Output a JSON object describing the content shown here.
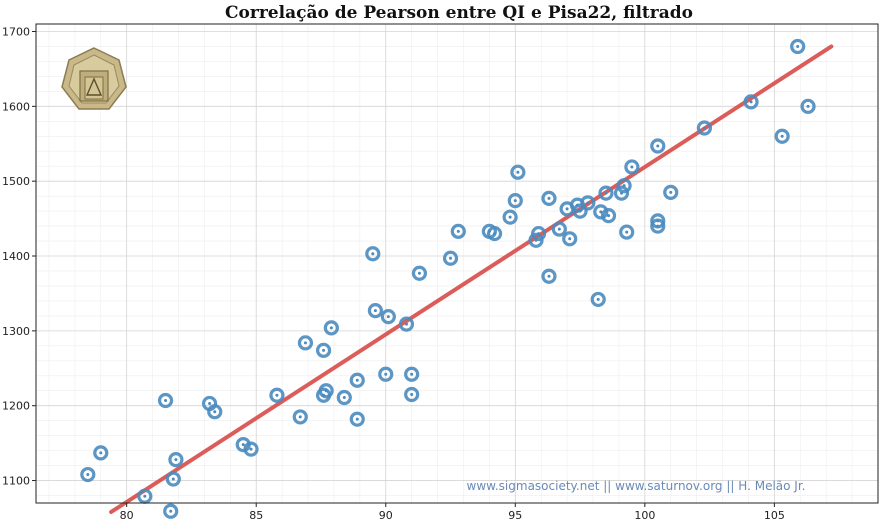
{
  "chart_data": {
    "type": "scatter",
    "title": "Correlação de Pearson entre QI e Pisa22, filtrado",
    "xlabel": "",
    "ylabel": "",
    "xlim": [
      76.5,
      109
    ],
    "ylim": [
      1070,
      1710
    ],
    "x_ticks": [
      "80",
      "85",
      "90",
      "95",
      "100",
      "105"
    ],
    "y_ticks": [
      "1100",
      "1200",
      "1300",
      "1400",
      "1500",
      "1600",
      "1700"
    ],
    "grid": true,
    "colors": {
      "points": "#4a8bbf",
      "trendline": "#d9534f"
    },
    "points": [
      {
        "x": 78.5,
        "y": 1108
      },
      {
        "x": 79.0,
        "y": 1137
      },
      {
        "x": 80.7,
        "y": 1079
      },
      {
        "x": 81.5,
        "y": 1207
      },
      {
        "x": 81.7,
        "y": 1059
      },
      {
        "x": 81.8,
        "y": 1102
      },
      {
        "x": 81.9,
        "y": 1128
      },
      {
        "x": 83.2,
        "y": 1203
      },
      {
        "x": 83.4,
        "y": 1192
      },
      {
        "x": 84.5,
        "y": 1148
      },
      {
        "x": 84.8,
        "y": 1142
      },
      {
        "x": 85.8,
        "y": 1214
      },
      {
        "x": 86.7,
        "y": 1185
      },
      {
        "x": 86.9,
        "y": 1284
      },
      {
        "x": 87.6,
        "y": 1274
      },
      {
        "x": 87.6,
        "y": 1214
      },
      {
        "x": 87.7,
        "y": 1220
      },
      {
        "x": 87.9,
        "y": 1304
      },
      {
        "x": 88.4,
        "y": 1211
      },
      {
        "x": 88.9,
        "y": 1182
      },
      {
        "x": 88.9,
        "y": 1234
      },
      {
        "x": 89.5,
        "y": 1403
      },
      {
        "x": 89.6,
        "y": 1327
      },
      {
        "x": 90.0,
        "y": 1242
      },
      {
        "x": 90.1,
        "y": 1319
      },
      {
        "x": 90.8,
        "y": 1309
      },
      {
        "x": 91.0,
        "y": 1242
      },
      {
        "x": 91.0,
        "y": 1215
      },
      {
        "x": 91.3,
        "y": 1377
      },
      {
        "x": 92.5,
        "y": 1397
      },
      {
        "x": 92.8,
        "y": 1433
      },
      {
        "x": 94.0,
        "y": 1433
      },
      {
        "x": 94.2,
        "y": 1430
      },
      {
        "x": 94.8,
        "y": 1452
      },
      {
        "x": 95.0,
        "y": 1474
      },
      {
        "x": 95.1,
        "y": 1512
      },
      {
        "x": 95.8,
        "y": 1421
      },
      {
        "x": 95.9,
        "y": 1430
      },
      {
        "x": 96.3,
        "y": 1373
      },
      {
        "x": 96.3,
        "y": 1477
      },
      {
        "x": 96.7,
        "y": 1436
      },
      {
        "x": 97.0,
        "y": 1463
      },
      {
        "x": 97.1,
        "y": 1423
      },
      {
        "x": 97.4,
        "y": 1468
      },
      {
        "x": 97.5,
        "y": 1460
      },
      {
        "x": 97.8,
        "y": 1471
      },
      {
        "x": 98.2,
        "y": 1342
      },
      {
        "x": 98.3,
        "y": 1459
      },
      {
        "x": 98.5,
        "y": 1484
      },
      {
        "x": 98.6,
        "y": 1454
      },
      {
        "x": 99.1,
        "y": 1484
      },
      {
        "x": 99.2,
        "y": 1494
      },
      {
        "x": 99.3,
        "y": 1432
      },
      {
        "x": 99.5,
        "y": 1519
      },
      {
        "x": 100.5,
        "y": 1547
      },
      {
        "x": 100.5,
        "y": 1447
      },
      {
        "x": 100.5,
        "y": 1440
      },
      {
        "x": 101.0,
        "y": 1485
      },
      {
        "x": 102.3,
        "y": 1571
      },
      {
        "x": 104.1,
        "y": 1606
      },
      {
        "x": 105.3,
        "y": 1560
      },
      {
        "x": 105.9,
        "y": 1680
      },
      {
        "x": 106.3,
        "y": 1600
      }
    ],
    "trendline": {
      "x": [
        79.4,
        107.2
      ],
      "y": [
        1058,
        1680
      ]
    },
    "watermark": "www.sigmasociety.net || www.saturnov.org || H. Melão Jr."
  }
}
